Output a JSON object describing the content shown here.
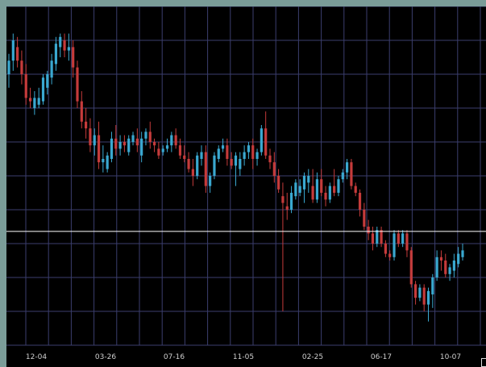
{
  "chart_data": {
    "type": "candlestick",
    "x_tick_labels": [
      "12-04",
      "03-26",
      "07-16",
      "11-05",
      "02-25",
      "06-17",
      "10-07"
    ],
    "ylim": [
      0,
      100
    ],
    "reference_line": 33.6,
    "grid": true,
    "colors": {
      "up": "#3aa8d0",
      "down": "#c53b3b",
      "grid": "#3b3e6e",
      "reference": "#ffffff",
      "tick_text": "#cfcfcf",
      "background": "#000000"
    },
    "candles": [
      {
        "o": 80,
        "h": 86,
        "l": 76,
        "c": 84
      },
      {
        "o": 84,
        "h": 92,
        "l": 81,
        "c": 90
      },
      {
        "o": 88,
        "h": 91,
        "l": 82,
        "c": 84
      },
      {
        "o": 84,
        "h": 87,
        "l": 77,
        "c": 80
      },
      {
        "o": 80,
        "h": 83,
        "l": 71,
        "c": 73
      },
      {
        "o": 73,
        "h": 76,
        "l": 70,
        "c": 72
      },
      {
        "o": 70,
        "h": 75,
        "l": 68,
        "c": 73
      },
      {
        "o": 71,
        "h": 76,
        "l": 70,
        "c": 73
      },
      {
        "o": 72,
        "h": 80,
        "l": 71,
        "c": 79
      },
      {
        "o": 76,
        "h": 81,
        "l": 74,
        "c": 80
      },
      {
        "o": 79,
        "h": 86,
        "l": 77,
        "c": 84
      },
      {
        "o": 83,
        "h": 91,
        "l": 81,
        "c": 89
      },
      {
        "o": 88,
        "h": 92,
        "l": 85,
        "c": 91
      },
      {
        "o": 90,
        "h": 92,
        "l": 85,
        "c": 87
      },
      {
        "o": 87,
        "h": 92,
        "l": 84,
        "c": 88
      },
      {
        "o": 88,
        "h": 90,
        "l": 79,
        "c": 82
      },
      {
        "o": 82,
        "h": 84,
        "l": 70,
        "c": 72
      },
      {
        "o": 72,
        "h": 75,
        "l": 64,
        "c": 66
      },
      {
        "o": 66,
        "h": 70,
        "l": 61,
        "c": 64
      },
      {
        "o": 64,
        "h": 67,
        "l": 57,
        "c": 59
      },
      {
        "o": 59,
        "h": 64,
        "l": 56,
        "c": 62
      },
      {
        "o": 62,
        "h": 66,
        "l": 52,
        "c": 54
      },
      {
        "o": 54,
        "h": 59,
        "l": 51,
        "c": 55
      },
      {
        "o": 52,
        "h": 57,
        "l": 51,
        "c": 56
      },
      {
        "o": 55,
        "h": 63,
        "l": 54,
        "c": 61
      },
      {
        "o": 61,
        "h": 65,
        "l": 56,
        "c": 58
      },
      {
        "o": 58,
        "h": 62,
        "l": 56,
        "c": 60
      },
      {
        "o": 60,
        "h": 62,
        "l": 57,
        "c": 59
      },
      {
        "o": 57,
        "h": 62,
        "l": 56,
        "c": 61
      },
      {
        "o": 60,
        "h": 63,
        "l": 59,
        "c": 62
      },
      {
        "o": 61,
        "h": 64,
        "l": 57,
        "c": 59
      },
      {
        "o": 56,
        "h": 63,
        "l": 54,
        "c": 61
      },
      {
        "o": 61,
        "h": 64,
        "l": 59,
        "c": 63
      },
      {
        "o": 63,
        "h": 66,
        "l": 58,
        "c": 60
      },
      {
        "o": 60,
        "h": 61,
        "l": 57,
        "c": 59
      },
      {
        "o": 58,
        "h": 60,
        "l": 55,
        "c": 56
      },
      {
        "o": 57,
        "h": 59,
        "l": 56,
        "c": 58
      },
      {
        "o": 58,
        "h": 61,
        "l": 57,
        "c": 59
      },
      {
        "o": 59,
        "h": 63,
        "l": 57,
        "c": 62
      },
      {
        "o": 62,
        "h": 64,
        "l": 58,
        "c": 59
      },
      {
        "o": 59,
        "h": 61,
        "l": 55,
        "c": 56
      },
      {
        "o": 56,
        "h": 59,
        "l": 54,
        "c": 55
      },
      {
        "o": 55,
        "h": 57,
        "l": 51,
        "c": 52
      },
      {
        "o": 52,
        "h": 55,
        "l": 47,
        "c": 50
      },
      {
        "o": 50,
        "h": 57,
        "l": 49,
        "c": 56
      },
      {
        "o": 55,
        "h": 59,
        "l": 53,
        "c": 57
      },
      {
        "o": 57,
        "h": 59,
        "l": 45,
        "c": 47
      },
      {
        "o": 47,
        "h": 51,
        "l": 45,
        "c": 50
      },
      {
        "o": 50,
        "h": 57,
        "l": 49,
        "c": 56
      },
      {
        "o": 55,
        "h": 59,
        "l": 54,
        "c": 58
      },
      {
        "o": 58,
        "h": 61,
        "l": 57,
        "c": 59
      },
      {
        "o": 59,
        "h": 61,
        "l": 53,
        "c": 55
      },
      {
        "o": 55,
        "h": 57,
        "l": 52,
        "c": 53
      },
      {
        "o": 53,
        "h": 57,
        "l": 47,
        "c": 56
      },
      {
        "o": 52,
        "h": 57,
        "l": 50,
        "c": 55
      },
      {
        "o": 55,
        "h": 59,
        "l": 53,
        "c": 57
      },
      {
        "o": 57,
        "h": 60,
        "l": 55,
        "c": 59
      },
      {
        "o": 59,
        "h": 61,
        "l": 52,
        "c": 55
      },
      {
        "o": 55,
        "h": 58,
        "l": 53,
        "c": 57
      },
      {
        "o": 57,
        "h": 65,
        "l": 56,
        "c": 64
      },
      {
        "o": 64,
        "h": 69,
        "l": 55,
        "c": 56
      },
      {
        "o": 56,
        "h": 58,
        "l": 52,
        "c": 54
      },
      {
        "o": 54,
        "h": 57,
        "l": 48,
        "c": 50
      },
      {
        "o": 50,
        "h": 52,
        "l": 45,
        "c": 46
      },
      {
        "o": 44,
        "h": 48,
        "l": 10,
        "c": 42
      },
      {
        "o": 41,
        "h": 45,
        "l": 37,
        "c": 40
      },
      {
        "o": 40,
        "h": 47,
        "l": 39,
        "c": 45
      },
      {
        "o": 44,
        "h": 49,
        "l": 43,
        "c": 48
      },
      {
        "o": 45,
        "h": 49,
        "l": 44,
        "c": 47
      },
      {
        "o": 46,
        "h": 51,
        "l": 42,
        "c": 50
      },
      {
        "o": 48,
        "h": 52,
        "l": 45,
        "c": 50
      },
      {
        "o": 47,
        "h": 52,
        "l": 42,
        "c": 43
      },
      {
        "o": 43,
        "h": 51,
        "l": 42,
        "c": 49
      },
      {
        "o": 49,
        "h": 52,
        "l": 44,
        "c": 45
      },
      {
        "o": 45,
        "h": 47,
        "l": 41,
        "c": 43
      },
      {
        "o": 43,
        "h": 48,
        "l": 42,
        "c": 47
      },
      {
        "o": 47,
        "h": 52,
        "l": 44,
        "c": 45
      },
      {
        "o": 45,
        "h": 50,
        "l": 44,
        "c": 49
      },
      {
        "o": 49,
        "h": 52,
        "l": 48,
        "c": 51
      },
      {
        "o": 51,
        "h": 55,
        "l": 49,
        "c": 54
      },
      {
        "o": 54,
        "h": 55,
        "l": 46,
        "c": 47
      },
      {
        "o": 47,
        "h": 48,
        "l": 44,
        "c": 45
      },
      {
        "o": 45,
        "h": 46,
        "l": 38,
        "c": 40
      },
      {
        "o": 40,
        "h": 42,
        "l": 34,
        "c": 35
      },
      {
        "o": 35,
        "h": 37,
        "l": 31,
        "c": 33
      },
      {
        "o": 33,
        "h": 35,
        "l": 28,
        "c": 30
      },
      {
        "o": 30,
        "h": 35,
        "l": 29,
        "c": 34
      },
      {
        "o": 34,
        "h": 35,
        "l": 29,
        "c": 30
      },
      {
        "o": 30,
        "h": 31,
        "l": 26,
        "c": 27
      },
      {
        "o": 27,
        "h": 28,
        "l": 25,
        "c": 26
      },
      {
        "o": 26,
        "h": 34,
        "l": 25,
        "c": 33
      },
      {
        "o": 33,
        "h": 34,
        "l": 29,
        "c": 30
      },
      {
        "o": 30,
        "h": 34,
        "l": 29,
        "c": 33
      },
      {
        "o": 33,
        "h": 34,
        "l": 26,
        "c": 28
      },
      {
        "o": 28,
        "h": 29,
        "l": 17,
        "c": 18
      },
      {
        "o": 18,
        "h": 19,
        "l": 12,
        "c": 14
      },
      {
        "o": 14,
        "h": 18,
        "l": 13,
        "c": 17
      },
      {
        "o": 17,
        "h": 18,
        "l": 10,
        "c": 12
      },
      {
        "o": 12,
        "h": 17,
        "l": 7,
        "c": 16
      },
      {
        "o": 15,
        "h": 21,
        "l": 11,
        "c": 20
      },
      {
        "o": 20,
        "h": 28,
        "l": 19,
        "c": 26
      },
      {
        "o": 26,
        "h": 28,
        "l": 22,
        "c": 25
      },
      {
        "o": 25,
        "h": 27,
        "l": 20,
        "c": 21
      },
      {
        "o": 21,
        "h": 24,
        "l": 19,
        "c": 23
      },
      {
        "o": 22,
        "h": 27,
        "l": 20,
        "c": 25
      },
      {
        "o": 24,
        "h": 29,
        "l": 23,
        "c": 27
      },
      {
        "o": 26,
        "h": 30,
        "l": 25,
        "c": 28
      }
    ]
  }
}
